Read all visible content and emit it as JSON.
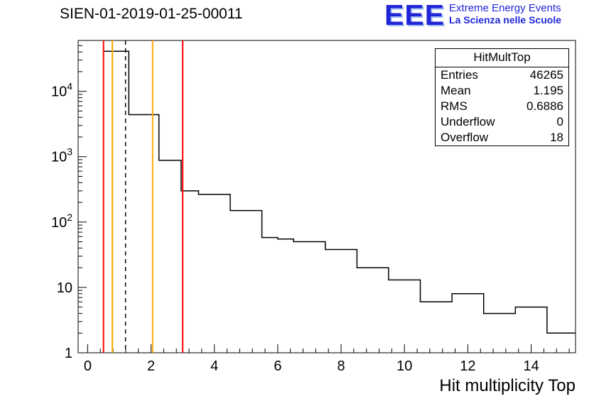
{
  "header": {
    "title": "SIEN-01-2019-01-25-00011"
  },
  "logo": {
    "eee": "EEE",
    "line1": "Extreme Energy Events",
    "line2": "La Scienza nelle Scuole",
    "color": "#2026d8"
  },
  "stats": {
    "title": "HitMultTop",
    "rows": [
      {
        "label": "Entries",
        "value": "46265"
      },
      {
        "label": "Mean",
        "value": "1.195"
      },
      {
        "label": "RMS",
        "value": "0.6886"
      },
      {
        "label": "Underflow",
        "value": "0"
      },
      {
        "label": "Overflow",
        "value": "18"
      }
    ]
  },
  "chart_data": {
    "type": "bar",
    "subtype": "step-histogram",
    "title": "SIEN-01-2019-01-25-00011",
    "xlabel": "Hit multiplicity Top",
    "ylabel": "",
    "y_scale": "log",
    "x_range": [
      -0.3,
      15.4
    ],
    "y_range": [
      1,
      60000
    ],
    "x_major_ticks": [
      0,
      2,
      4,
      6,
      8,
      10,
      12,
      14
    ],
    "x_minor_step": 0.4,
    "y_major_ticks": [
      1,
      10,
      100,
      1000,
      10000
    ],
    "grid": false,
    "line_color": "#000000",
    "steps": [
      [
        0.5,
        1.3,
        41000
      ],
      [
        1.3,
        2.25,
        4400
      ],
      [
        2.25,
        2.95,
        880
      ],
      [
        2.95,
        3.5,
        300
      ],
      [
        3.5,
        4.5,
        265
      ],
      [
        4.5,
        5.5,
        150
      ],
      [
        5.5,
        6.0,
        58
      ],
      [
        6.0,
        6.5,
        55
      ],
      [
        6.5,
        7.5,
        50
      ],
      [
        7.5,
        8.5,
        38
      ],
      [
        8.5,
        9.5,
        20
      ],
      [
        9.5,
        10.5,
        13
      ],
      [
        10.5,
        11.5,
        6
      ],
      [
        11.5,
        12.5,
        8
      ],
      [
        12.5,
        13.5,
        4
      ],
      [
        13.5,
        14.5,
        5
      ],
      [
        14.5,
        15.4,
        2
      ]
    ],
    "vlines": [
      {
        "x": 0.5,
        "color": "#ff0000",
        "dash": false
      },
      {
        "x": 0.78,
        "color": "#ffaa00",
        "dash": false
      },
      {
        "x": 1.195,
        "color": "#000000",
        "dash": true
      },
      {
        "x": 2.05,
        "color": "#ffaa00",
        "dash": false
      },
      {
        "x": 3.0,
        "color": "#ff0000",
        "dash": false
      }
    ]
  }
}
